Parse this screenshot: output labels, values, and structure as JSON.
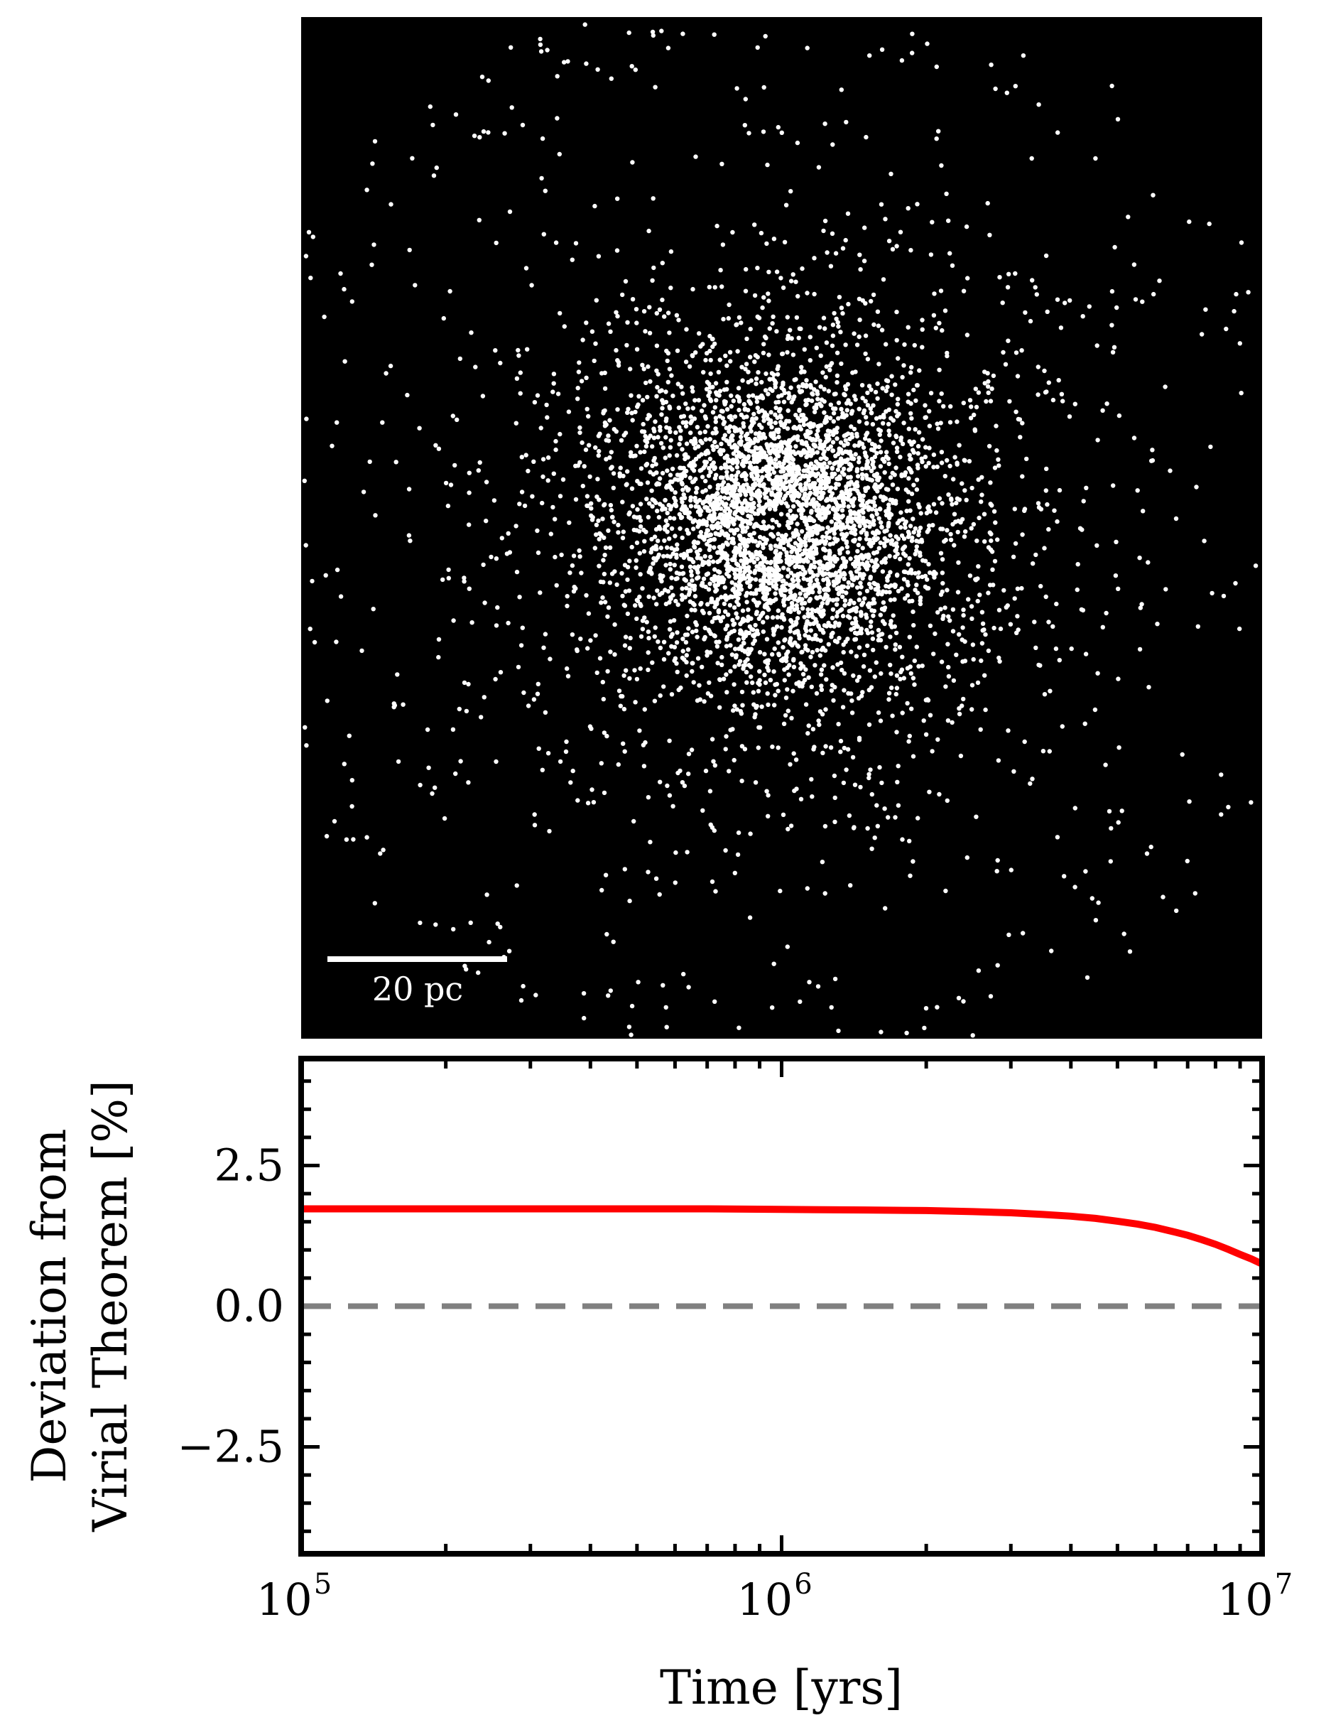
{
  "chart_data": [
    {
      "type": "scatter",
      "description_hidden": true,
      "scale_bar": {
        "label": "20 pc",
        "length_pc": 20
      },
      "background_color": "#000000",
      "point_color": "#ffffff",
      "distribution": {
        "kind": "plummer-like",
        "core_radius_pc": 10,
        "extent_pc": 62,
        "n_points": 5000
      },
      "field_of_view_pc": 124
    },
    {
      "type": "line",
      "xlabel": "Time [yrs]",
      "ylabel_line1": "Deviation from",
      "ylabel_line2": "Virial Theorem [%]",
      "x_scale": "log",
      "xlim": [
        100000,
        10000000
      ],
      "ylim": [
        -4.4,
        4.4
      ],
      "x_ticks": [
        {
          "base": "10",
          "exp": "5",
          "value": 100000
        },
        {
          "base": "10",
          "exp": "6",
          "value": 1000000
        },
        {
          "base": "10",
          "exp": "7",
          "value": 10000000
        }
      ],
      "y_ticks": [
        {
          "label": "2.5",
          "value": 2.5
        },
        {
          "label": "0.0",
          "value": 0.0
        },
        {
          "label": "−2.5",
          "value": -2.5
        }
      ],
      "y_minor_step": 0.5,
      "series": [
        {
          "color": "#ff0000",
          "style": "solid",
          "x": [
            100000,
            200000,
            400000,
            700000,
            1000000,
            1500000,
            2000000,
            2500000,
            3000000,
            3500000,
            4000000,
            4500000,
            5000000,
            5500000,
            6000000,
            6500000,
            7000000,
            7500000,
            8000000,
            8500000,
            9000000,
            9500000,
            10000000
          ],
          "y": [
            1.73,
            1.73,
            1.73,
            1.73,
            1.72,
            1.71,
            1.7,
            1.68,
            1.66,
            1.63,
            1.6,
            1.56,
            1.51,
            1.46,
            1.4,
            1.33,
            1.26,
            1.18,
            1.1,
            1.01,
            0.92,
            0.84,
            0.75
          ]
        },
        {
          "color": "#808080",
          "style": "dashed",
          "x": [
            100000,
            10000000
          ],
          "y": [
            0.0,
            0.0
          ]
        }
      ]
    }
  ]
}
